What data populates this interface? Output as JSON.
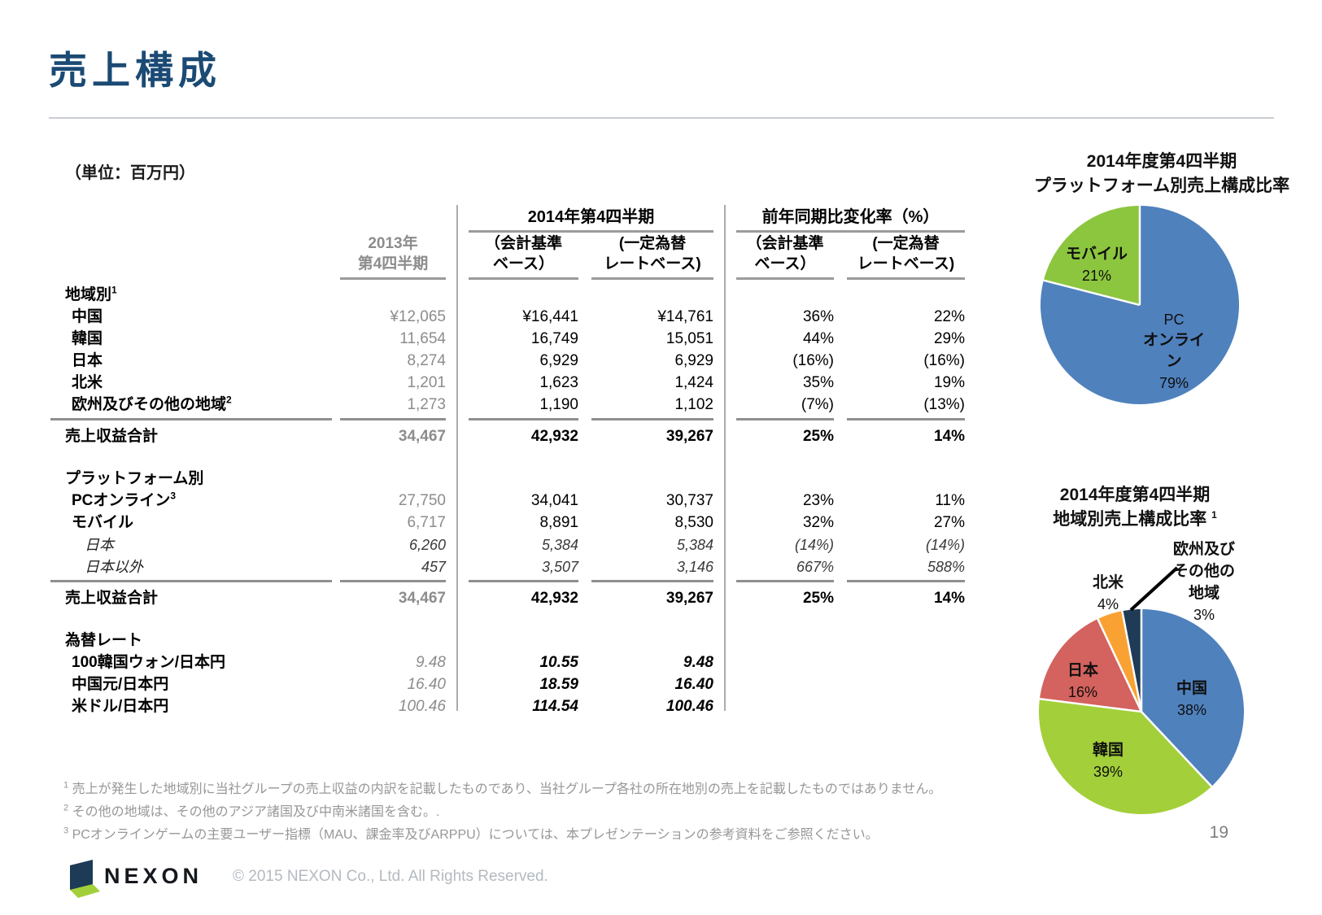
{
  "slide": {
    "title": "売上構成",
    "units_note": "（単位：百万円）"
  },
  "table": {
    "header": {
      "col2013_line1": "2013年",
      "col2013_line2": "第4四半期",
      "group2014": "2014年第4四半期",
      "groupYoY": "前年同期比変化率（%）",
      "sub_accounting_l1": "（会計基準",
      "sub_accounting_l2": "ベース）",
      "sub_constant_l1": "(一定為替",
      "sub_constant_l2": "レートベース)"
    },
    "sections": [
      {
        "header": "地域別",
        "header_sup": "1",
        "rows": [
          {
            "label": "中国",
            "v2013": "¥12,065",
            "v2014a": "¥16,441",
            "v2014b": "¥14,761",
            "yoya": "36%",
            "yoyb": "22%"
          },
          {
            "label": "韓国",
            "v2013": "11,654",
            "v2014a": "16,749",
            "v2014b": "15,051",
            "yoya": "44%",
            "yoyb": "29%"
          },
          {
            "label": "日本",
            "v2013": "8,274",
            "v2014a": "6,929",
            "v2014b": "6,929",
            "yoya": "(16%)",
            "yoyb": "(16%)"
          },
          {
            "label": "北米",
            "v2013": "1,201",
            "v2014a": "1,623",
            "v2014b": "1,424",
            "yoya": "35%",
            "yoyb": "19%"
          },
          {
            "label": "欧州及びその他の地域",
            "label_sup": "2",
            "v2013": "1,273",
            "v2014a": "1,190",
            "v2014b": "1,102",
            "yoya": "(7%)",
            "yoyb": "(13%)"
          }
        ],
        "total": {
          "label": "売上収益合計",
          "v2013": "34,467",
          "v2014a": "42,932",
          "v2014b": "39,267",
          "yoya": "25%",
          "yoyb": "14%"
        }
      },
      {
        "header": "プラットフォーム別",
        "rows": [
          {
            "label": "PCオンライン",
            "label_sup": "3",
            "v2013": "27,750",
            "v2014a": "34,041",
            "v2014b": "30,737",
            "yoya": "23%",
            "yoyb": "11%"
          },
          {
            "label": "モバイル",
            "v2013": "6,717",
            "v2014a": "8,891",
            "v2014b": "8,530",
            "yoya": "32%",
            "yoyb": "27%"
          },
          {
            "label": "日本",
            "v2013": "6,260",
            "v2014a": "5,384",
            "v2014b": "5,384",
            "yoya": "(14%)",
            "yoyb": "(14%)"
          },
          {
            "label": "日本以外",
            "v2013": "457",
            "v2014a": "3,507",
            "v2014b": "3,146",
            "yoya": "667%",
            "yoyb": "588%"
          }
        ],
        "total": {
          "label": "売上収益合計",
          "v2013": "34,467",
          "v2014a": "42,932",
          "v2014b": "39,267",
          "yoya": "25%",
          "yoyb": "14%"
        }
      },
      {
        "header": "為替レート",
        "rows": [
          {
            "label": "100韓国ウォン/日本円",
            "v2013": "9.48",
            "v2014a": "10.55",
            "v2014b": "9.48"
          },
          {
            "label": "中国元/日本円",
            "v2013": "16.40",
            "v2014a": "18.59",
            "v2014b": "16.40"
          },
          {
            "label": "米ドル/日本円",
            "v2013": "100.46",
            "v2014a": "114.54",
            "v2014b": "100.46"
          }
        ]
      }
    ]
  },
  "chart_data": [
    {
      "type": "pie",
      "title": "2014年度第4四半期 プラットフォーム別売上構成比率",
      "title_lines": [
        "2014年度第4四半期",
        "プラットフォーム別売上構成比率"
      ],
      "labels": [
        "PCオンライン",
        "モバイル"
      ],
      "values": [
        79,
        21
      ],
      "unit": "%",
      "colors": [
        "#4F81BD",
        "#8CC63E"
      ],
      "slice_labels": {
        "pc": {
          "l1": "PC",
          "l2": "オンライン",
          "pct": "79%"
        },
        "mobile": {
          "l1": "モバイル",
          "pct": "21%"
        }
      }
    },
    {
      "type": "pie",
      "title": "2014年度第4四半期 地域別売上構成比率",
      "title_lines": [
        "2014年度第4四半期",
        "地域別売上構成比率"
      ],
      "title_sup": "1",
      "labels": [
        "中国",
        "韓国",
        "日本",
        "北米",
        "欧州及びその他の地域"
      ],
      "values": [
        38,
        39,
        16,
        4,
        3
      ],
      "unit": "%",
      "colors": [
        "#4F81BD",
        "#A3CF3A",
        "#D4625E",
        "#F9A233",
        "#1F3B57"
      ],
      "slice_labels": {
        "china": {
          "l1": "中国",
          "pct": "38%"
        },
        "korea": {
          "l1": "韓国",
          "pct": "39%"
        },
        "japan": {
          "l1": "日本",
          "pct": "16%"
        },
        "na": {
          "l1": "北米",
          "pct": "4%"
        },
        "eu": {
          "l1": "欧州及び",
          "l2": "その他の",
          "l3": "地域",
          "pct": "3%"
        }
      }
    }
  ],
  "footnotes": [
    {
      "sup": "1",
      "text": "売上が発生した地域別に当社グループの売上収益の内訳を記載したものであり、当社グループ各社の所在地別の売上を記載したものではありません。"
    },
    {
      "sup": "2",
      "text": "その他の地域は、その他のアジア諸国及び中南米諸国を含む。."
    },
    {
      "sup": "3",
      "text": "PCオンラインゲームの主要ユーザー指標（MAU、課金率及びARPPU）については、本プレゼンテーションの参考資料をご参照ください。"
    }
  ],
  "footer": {
    "logo_text": "NEXON",
    "copyright": "© 2015 NEXON Co., Ltd. All Rights Reserved.",
    "page_number": "19"
  }
}
